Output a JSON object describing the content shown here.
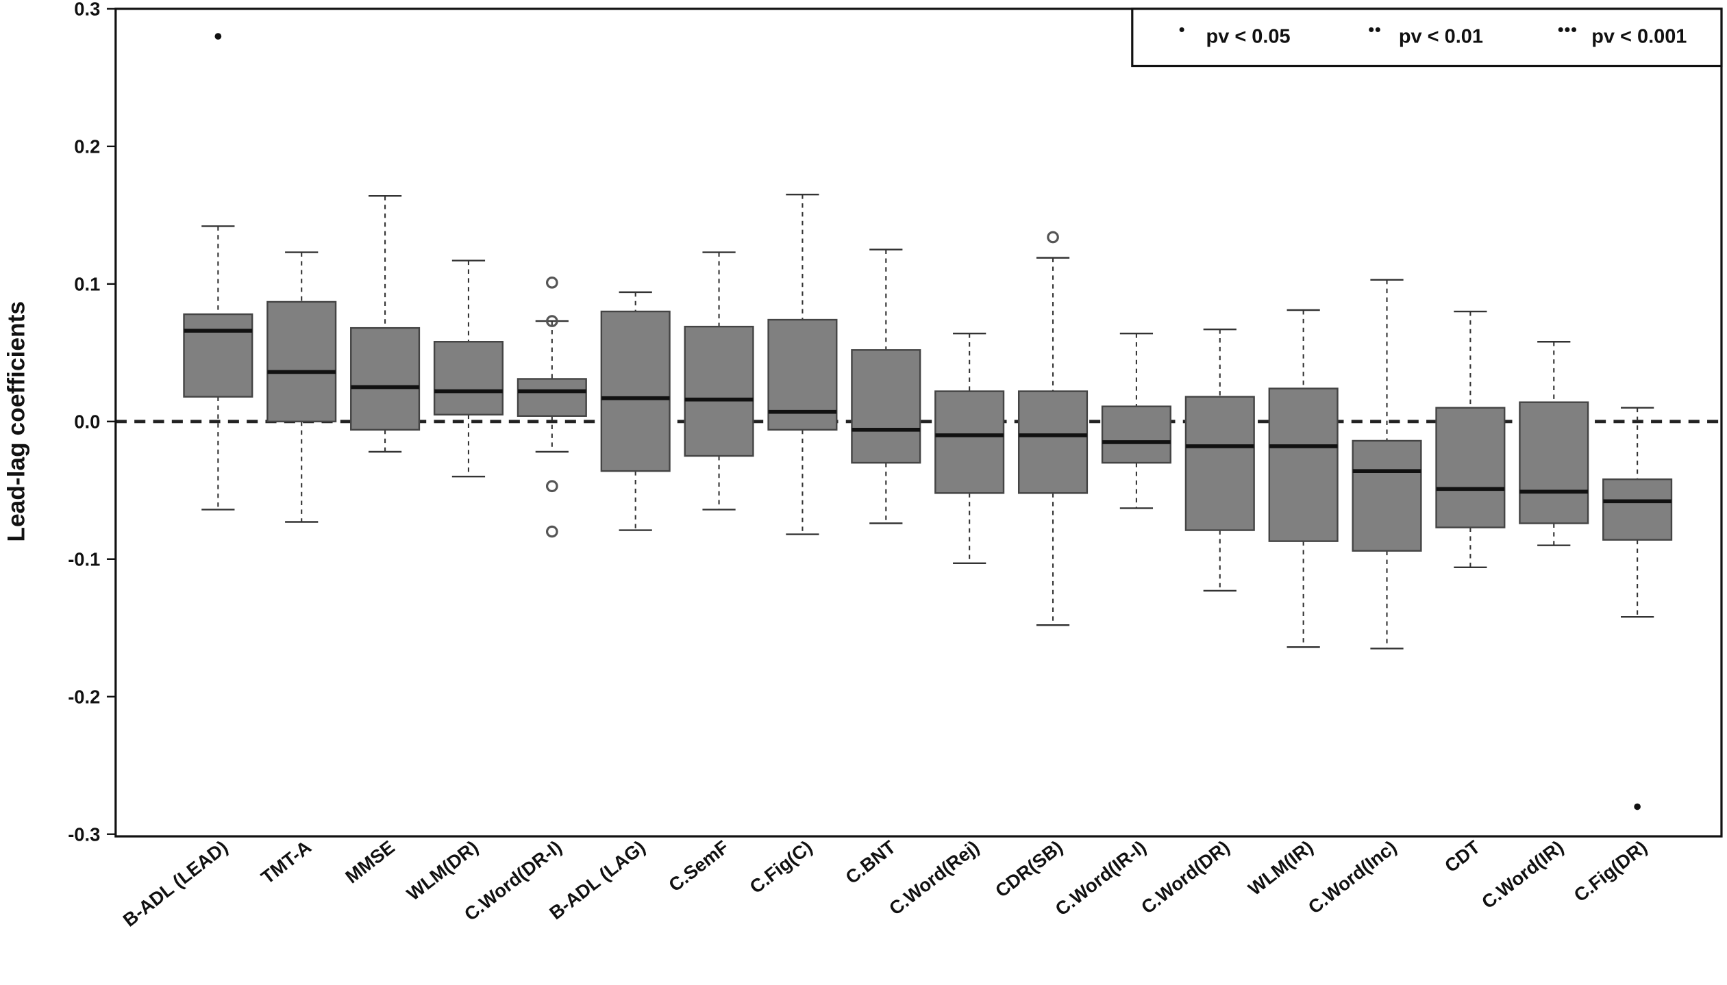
{
  "chart_data": {
    "type": "boxplot",
    "y_label": "Lead-lag coefficients",
    "categories": [
      "B-ADL (LEAD)",
      "TMT-A",
      "MMSE",
      "WLM(DR)",
      "C.Word(DR-I)",
      "B-ADL (LAG)",
      "C.SemF",
      "C.Fig(C)",
      "C.BNT",
      "C.Word(Rej)",
      "CDR(SB)",
      "C.Word(IR-I)",
      "C.Word(DR)",
      "WLM(IR)",
      "C.Word(Inc)",
      "CDT",
      "C.Word(IR)",
      "C.Fig(DR)"
    ],
    "boxes": [
      {
        "whisker_low": -0.064,
        "q1": 0.018,
        "median": 0.066,
        "q3": 0.078,
        "whisker_high": 0.142,
        "outliers": []
      },
      {
        "whisker_low": -0.073,
        "q1": 0.0,
        "median": 0.036,
        "q3": 0.087,
        "whisker_high": 0.123,
        "outliers": []
      },
      {
        "whisker_low": -0.022,
        "q1": -0.006,
        "median": 0.025,
        "q3": 0.068,
        "whisker_high": 0.164,
        "outliers": []
      },
      {
        "whisker_low": -0.04,
        "q1": 0.005,
        "median": 0.022,
        "q3": 0.058,
        "whisker_high": 0.117,
        "outliers": []
      },
      {
        "whisker_low": -0.022,
        "q1": 0.004,
        "median": 0.022,
        "q3": 0.031,
        "whisker_high": 0.073,
        "outliers": [
          0.101,
          0.073,
          -0.047,
          -0.08
        ]
      },
      {
        "whisker_low": -0.079,
        "q1": -0.036,
        "median": 0.017,
        "q3": 0.08,
        "whisker_high": 0.094,
        "outliers": []
      },
      {
        "whisker_low": -0.064,
        "q1": -0.025,
        "median": 0.016,
        "q3": 0.069,
        "whisker_high": 0.123,
        "outliers": []
      },
      {
        "whisker_low": -0.082,
        "q1": -0.006,
        "median": 0.007,
        "q3": 0.074,
        "whisker_high": 0.165,
        "outliers": []
      },
      {
        "whisker_low": -0.074,
        "q1": -0.03,
        "median": -0.006,
        "q3": 0.052,
        "whisker_high": 0.125,
        "outliers": []
      },
      {
        "whisker_low": -0.103,
        "q1": -0.052,
        "median": -0.01,
        "q3": 0.022,
        "whisker_high": 0.064,
        "outliers": []
      },
      {
        "whisker_low": -0.148,
        "q1": -0.052,
        "median": -0.01,
        "q3": 0.022,
        "whisker_high": 0.119,
        "outliers": [
          0.134
        ]
      },
      {
        "whisker_low": -0.063,
        "q1": -0.03,
        "median": -0.015,
        "q3": 0.011,
        "whisker_high": 0.064,
        "outliers": []
      },
      {
        "whisker_low": -0.123,
        "q1": -0.079,
        "median": -0.018,
        "q3": 0.018,
        "whisker_high": 0.067,
        "outliers": []
      },
      {
        "whisker_low": -0.164,
        "q1": -0.087,
        "median": -0.018,
        "q3": 0.024,
        "whisker_high": 0.081,
        "outliers": []
      },
      {
        "whisker_low": -0.165,
        "q1": -0.094,
        "median": -0.036,
        "q3": -0.014,
        "whisker_high": 0.103,
        "outliers": []
      },
      {
        "whisker_low": -0.106,
        "q1": -0.077,
        "median": -0.049,
        "q3": 0.01,
        "whisker_high": 0.08,
        "outliers": []
      },
      {
        "whisker_low": -0.09,
        "q1": -0.074,
        "median": -0.051,
        "q3": 0.014,
        "whisker_high": 0.058,
        "outliers": []
      },
      {
        "whisker_low": -0.142,
        "q1": -0.086,
        "median": -0.058,
        "q3": -0.042,
        "whisker_high": 0.01,
        "outliers": []
      }
    ],
    "significance_markers": [
      {
        "category_index": 0,
        "value": 0.28,
        "legend_index": 0
      },
      {
        "category_index": 17,
        "value": -0.28,
        "legend_index": 0
      }
    ],
    "legend": [
      "pv < 0.05",
      "pv < 0.01",
      "pv < 0.001"
    ],
    "legend_position": "top-right",
    "box_color": "#808080",
    "reference_line": 0,
    "ylim": [
      -0.3,
      0.3
    ],
    "yticks": [
      -0.3,
      -0.2,
      -0.1,
      {
        "value": 0,
        "label": "0.0"
      },
      0.1,
      0.2,
      0.3
    ]
  }
}
